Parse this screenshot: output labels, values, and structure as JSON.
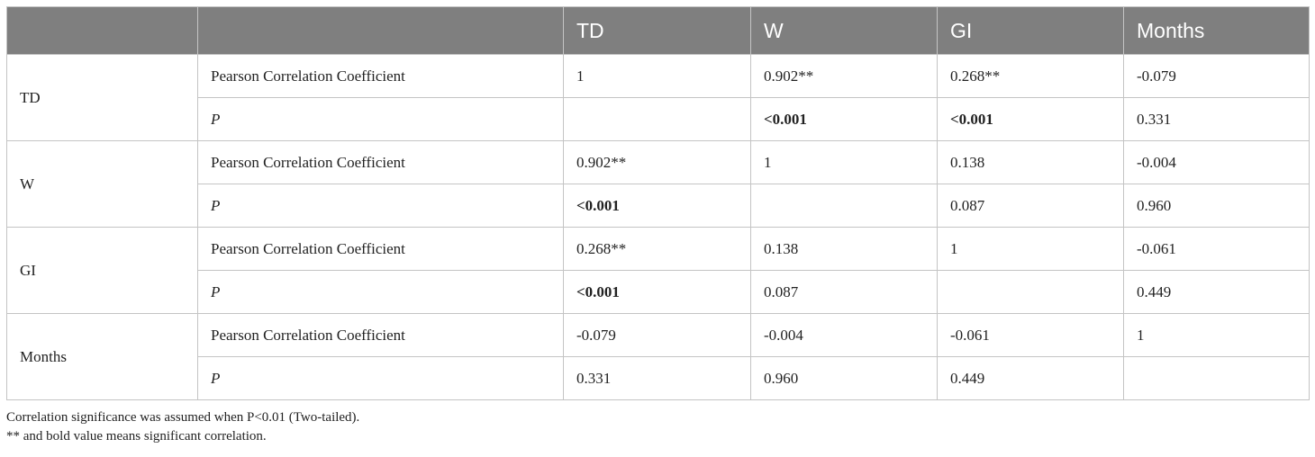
{
  "table": {
    "headers": [
      "",
      "",
      "TD",
      "W",
      "GI",
      "Months"
    ],
    "groups": [
      {
        "label": "TD",
        "rows": [
          {
            "label": "Pearson Correlation Coefficient",
            "italic": false,
            "cells": [
              {
                "v": "1",
                "b": false
              },
              {
                "v": "0.902**",
                "b": false
              },
              {
                "v": "0.268**",
                "b": false
              },
              {
                "v": "-0.079",
                "b": false
              }
            ]
          },
          {
            "label": "P",
            "italic": true,
            "cells": [
              {
                "v": "",
                "b": false
              },
              {
                "v": "<0.001",
                "b": true
              },
              {
                "v": "<0.001",
                "b": true
              },
              {
                "v": "0.331",
                "b": false
              }
            ]
          }
        ]
      },
      {
        "label": "W",
        "rows": [
          {
            "label": "Pearson Correlation Coefficient",
            "italic": false,
            "cells": [
              {
                "v": "0.902**",
                "b": false
              },
              {
                "v": "1",
                "b": false
              },
              {
                "v": "0.138",
                "b": false
              },
              {
                "v": "-0.004",
                "b": false
              }
            ]
          },
          {
            "label": "P",
            "italic": true,
            "cells": [
              {
                "v": "<0.001",
                "b": true
              },
              {
                "v": "",
                "b": false
              },
              {
                "v": "0.087",
                "b": false
              },
              {
                "v": "0.960",
                "b": false
              }
            ]
          }
        ]
      },
      {
        "label": "GI",
        "rows": [
          {
            "label": "Pearson Correlation Coefficient",
            "italic": false,
            "cells": [
              {
                "v": "0.268**",
                "b": false
              },
              {
                "v": "0.138",
                "b": false
              },
              {
                "v": "1",
                "b": false
              },
              {
                "v": "-0.061",
                "b": false
              }
            ]
          },
          {
            "label": "P",
            "italic": true,
            "cells": [
              {
                "v": "<0.001",
                "b": true
              },
              {
                "v": "0.087",
                "b": false
              },
              {
                "v": "",
                "b": false
              },
              {
                "v": "0.449",
                "b": false
              }
            ]
          }
        ]
      },
      {
        "label": "Months",
        "rows": [
          {
            "label": "Pearson Correlation Coefficient",
            "italic": false,
            "cells": [
              {
                "v": "-0.079",
                "b": false
              },
              {
                "v": "-0.004",
                "b": false
              },
              {
                "v": "-0.061",
                "b": false
              },
              {
                "v": "1",
                "b": false
              }
            ]
          },
          {
            "label": "P",
            "italic": true,
            "cells": [
              {
                "v": "0.331",
                "b": false
              },
              {
                "v": "0.960",
                "b": false
              },
              {
                "v": "0.449",
                "b": false
              },
              {
                "v": "",
                "b": false
              }
            ]
          }
        ]
      }
    ]
  },
  "footnotes": [
    "Correlation significance was assumed when P<0.01 (Two-tailed).",
    "** and bold value means significant correlation."
  ]
}
